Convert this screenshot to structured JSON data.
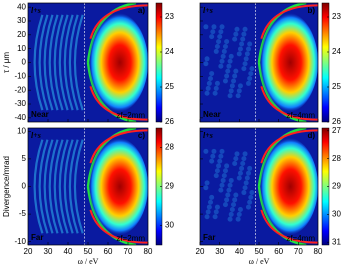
{
  "chart_data": [
    {
      "type": "heatmap",
      "panel": "a)",
      "label": "l+s",
      "position": "Near",
      "distance": "zf=2mm",
      "ylabel": "τ / μm",
      "xlim": [
        20,
        80
      ],
      "xticks": [
        20,
        30,
        40,
        50,
        60,
        70,
        80
      ],
      "xtick_labels": false,
      "ylim": [
        -43,
        43
      ],
      "yticks": [
        40,
        30,
        20,
        10,
        0,
        -10,
        -20,
        -30,
        -40
      ],
      "ytick_labels": true,
      "fringes": true,
      "clim": [
        22.6,
        26
      ],
      "cticks": [
        23,
        24,
        25,
        26
      ]
    },
    {
      "type": "heatmap",
      "panel": "b)",
      "label": "l+s",
      "position": "Near",
      "distance": "zf=4mm",
      "xlim": [
        20,
        80
      ],
      "xticks": [
        20,
        30,
        40,
        50,
        60,
        70,
        80
      ],
      "xtick_labels": false,
      "ylim": [
        -43,
        43
      ],
      "yticks": [
        40,
        30,
        20,
        10,
        0,
        -10,
        -20,
        -30,
        -40
      ],
      "ytick_labels": false,
      "fringes": false,
      "clim": [
        22.6,
        26
      ],
      "cticks": [
        23,
        24,
        25,
        26
      ]
    },
    {
      "type": "heatmap",
      "panel": "c)",
      "label": "l+s",
      "position": "Far",
      "distance": "zf=2mm",
      "ylabel": "Divergence/mrad",
      "xlabel": "ω / eV",
      "xlim": [
        20,
        80
      ],
      "xticks": [
        20,
        30,
        40,
        50,
        60,
        70,
        80
      ],
      "xtick_labels": true,
      "ylim": [
        -10.6,
        10.6
      ],
      "yticks": [
        10,
        5,
        0,
        -5,
        -10
      ],
      "ytick_labels": true,
      "fringes": true,
      "clim": [
        27.5,
        30.5
      ],
      "cticks": [
        28,
        29,
        30
      ]
    },
    {
      "type": "heatmap",
      "panel": "d)",
      "label": "l+s",
      "position": "Far",
      "distance": "zf=4mm",
      "xlabel": "ω / eV",
      "xlim": [
        20,
        80
      ],
      "xticks": [
        20,
        30,
        40,
        50,
        60,
        70,
        80
      ],
      "xtick_labels": true,
      "ylim": [
        -10.6,
        10.6
      ],
      "yticks": [
        10,
        5,
        0,
        -5,
        -10
      ],
      "ytick_labels": false,
      "fringes": false,
      "clim": [
        26.9,
        31.1
      ],
      "cticks": [
        27,
        28,
        29,
        30,
        31
      ]
    }
  ]
}
